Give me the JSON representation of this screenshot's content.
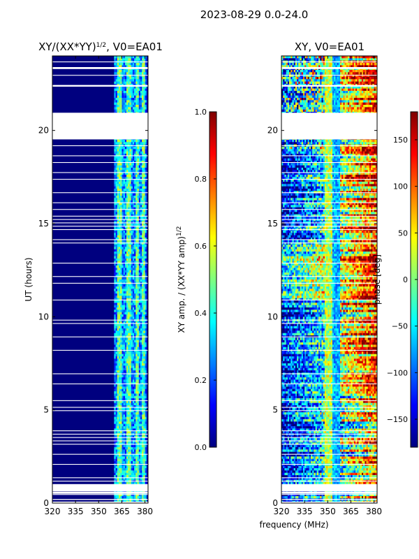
{
  "figure": {
    "suptitle": "2023-08-29 0.0-24.0",
    "shared_xlabel": "frequency (MHz)"
  },
  "colormap": [
    "#00007f",
    "#0000ff",
    "#007fff",
    "#00ffff",
    "#7fff7f",
    "#ffff00",
    "#ff7f00",
    "#ff0000",
    "#7f0000"
  ],
  "chart_data": [
    {
      "type": "heatmap",
      "title_base": "XY/(XX*YY)",
      "title_exp": "1/2",
      "title_tail": ", V0=EA01",
      "xlabel": "",
      "ylabel": "UT (hours)",
      "x_range": [
        320,
        382
      ],
      "y_range": [
        0,
        24
      ],
      "x_ticks": [
        320,
        335,
        350,
        365,
        380
      ],
      "y_ticks": [
        0,
        5,
        10,
        15,
        20
      ],
      "colorbar": {
        "label_base": "XY amp. / (XX*YY amp)",
        "label_exp": "1/2",
        "range": [
          0.0,
          1.0
        ],
        "ticks": [
          "0.0",
          "0.2",
          "0.4",
          "0.6",
          "0.8",
          "1.0"
        ],
        "tick_values": [
          0.0,
          0.2,
          0.4,
          0.6,
          0.8,
          1.0
        ]
      }
    },
    {
      "type": "heatmap",
      "title": "XY, V0=EA01",
      "xlabel": "frequency (MHz)",
      "ylabel": "",
      "x_range": [
        320,
        382
      ],
      "y_range": [
        0,
        24
      ],
      "x_ticks": [
        320,
        335,
        350,
        365,
        380
      ],
      "y_ticks": [
        0,
        5,
        10,
        15,
        20
      ],
      "colorbar": {
        "label": "phase [deg]",
        "range": [
          -180,
          180
        ],
        "ticks": [
          "−150",
          "−100",
          "−50",
          "0",
          "50",
          "100",
          "150"
        ],
        "tick_values": [
          -150,
          -100,
          -50,
          0,
          50,
          100,
          150
        ]
      }
    }
  ],
  "data_gaps_hours": [
    [
      0.0,
      0.08
    ],
    [
      0.17,
      0.22
    ],
    [
      0.5,
      0.6
    ],
    [
      0.65,
      1.0
    ],
    [
      19.55,
      20.95
    ],
    [
      23.3,
      23.4
    ],
    [
      22.35,
      22.42
    ]
  ]
}
